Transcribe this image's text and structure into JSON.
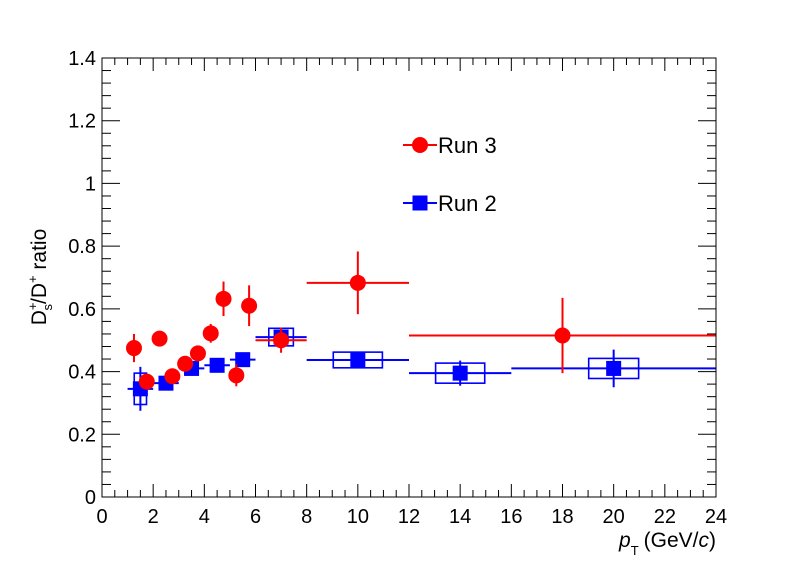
{
  "chart_data": {
    "type": "scatter",
    "title": "",
    "xlabel": {
      "symbol": "p",
      "subscript": "T",
      "units_prefix": "(GeV/",
      "units_c": "c",
      "units_suffix": ")"
    },
    "ylabel": {
      "base1": "D",
      "sup1": "+",
      "sub1": "s",
      "slash": "/",
      "base2": "D",
      "sup2": "+",
      "rest": " ratio"
    },
    "xlim": [
      0,
      24
    ],
    "ylim": [
      0,
      1.4
    ],
    "xticks": [
      0,
      2,
      4,
      6,
      8,
      10,
      12,
      14,
      16,
      18,
      20,
      22,
      24
    ],
    "yticks": [
      0,
      0.2,
      0.4,
      0.6,
      0.8,
      1,
      1.2,
      1.4
    ],
    "xtick_labels": [
      "0",
      "2",
      "4",
      "6",
      "8",
      "10",
      "12",
      "14",
      "16",
      "18",
      "20",
      "22",
      "24"
    ],
    "ytick_labels": [
      "0",
      "0.2",
      "0.4",
      "0.6",
      "0.8",
      "1",
      "1.2",
      "1.4"
    ],
    "grid": false,
    "legend_position": "upper-center",
    "series": [
      {
        "name": "Run 3",
        "color": "#ff0000",
        "marker": "circle",
        "points": [
          {
            "x": 1.25,
            "y": 0.475,
            "xerr": 0.25,
            "yerr": 0.045
          },
          {
            "x": 1.75,
            "y": 0.368,
            "xerr": 0.25,
            "yerr": 0.025
          },
          {
            "x": 2.25,
            "y": 0.505,
            "xerr": 0.25,
            "yerr": 0.022
          },
          {
            "x": 2.75,
            "y": 0.385,
            "xerr": 0.25,
            "yerr": 0.018
          },
          {
            "x": 3.25,
            "y": 0.425,
            "xerr": 0.25,
            "yerr": 0.018
          },
          {
            "x": 3.75,
            "y": 0.458,
            "xerr": 0.25,
            "yerr": 0.02
          },
          {
            "x": 4.25,
            "y": 0.522,
            "xerr": 0.25,
            "yerr": 0.03
          },
          {
            "x": 4.75,
            "y": 0.632,
            "xerr": 0.25,
            "yerr": 0.055
          },
          {
            "x": 5.25,
            "y": 0.388,
            "xerr": 0.25,
            "yerr": 0.035
          },
          {
            "x": 5.75,
            "y": 0.61,
            "xerr": 0.25,
            "yerr": 0.065
          },
          {
            "x": 7.0,
            "y": 0.5,
            "xerr": 1.0,
            "yerr": 0.04
          },
          {
            "x": 10.0,
            "y": 0.683,
            "xerr": 2.0,
            "yerr": 0.1
          },
          {
            "x": 18.0,
            "y": 0.515,
            "xerr": 6.0,
            "yerr": 0.12
          }
        ]
      },
      {
        "name": "Run 2",
        "color": "#0000ff",
        "marker": "square",
        "points": [
          {
            "x": 1.5,
            "y": 0.345,
            "xerr": 0.5,
            "yerr": 0.07,
            "syst": 0.05
          },
          {
            "x": 2.5,
            "y": 0.363,
            "xerr": 0.5,
            "yerr": 0.02,
            "syst": 0.018
          },
          {
            "x": 3.5,
            "y": 0.41,
            "xerr": 0.5,
            "yerr": 0.018,
            "syst": 0.015
          },
          {
            "x": 4.5,
            "y": 0.42,
            "xerr": 0.5,
            "yerr": 0.018,
            "syst": 0.017
          },
          {
            "x": 5.5,
            "y": 0.438,
            "xerr": 0.5,
            "yerr": 0.018,
            "syst": 0.018
          },
          {
            "x": 7.0,
            "y": 0.51,
            "xerr": 1.0,
            "yerr": 0.025,
            "syst": 0.028
          },
          {
            "x": 10.0,
            "y": 0.437,
            "xerr": 2.0,
            "yerr": 0.02,
            "syst": 0.025
          },
          {
            "x": 14.0,
            "y": 0.395,
            "xerr": 2.0,
            "yerr": 0.04,
            "syst": 0.032
          },
          {
            "x": 20.0,
            "y": 0.41,
            "xerr": 4.0,
            "yerr": 0.06,
            "syst": 0.032
          }
        ]
      }
    ]
  }
}
